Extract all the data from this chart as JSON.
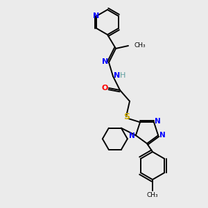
{
  "background_color": "#ebebeb",
  "atom_colors": {
    "N": "#0000ff",
    "O": "#ff0000",
    "S": "#ccaa00",
    "H": "#5f9ea0",
    "C": "#000000"
  },
  "bond_color": "#000000",
  "figsize": [
    3.0,
    3.0
  ],
  "dpi": 100
}
